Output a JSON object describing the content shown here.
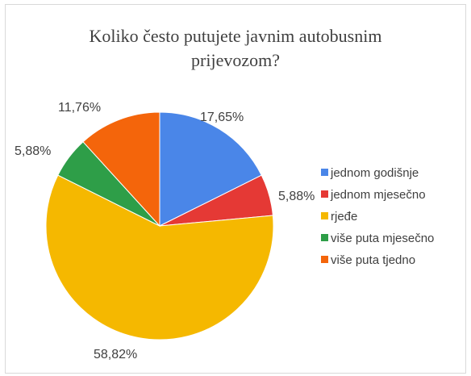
{
  "chart_data": {
    "type": "pie",
    "title_lines": [
      "Koliko često putujete javnim autobusnim",
      "prijevozom?"
    ],
    "slices": [
      {
        "label": "jednom godišnje",
        "value": 17.65,
        "display": "17,65%",
        "color": "#4a86e8"
      },
      {
        "label": "jednom mjesečno",
        "value": 5.88,
        "display": "5,88%",
        "color": "#e53935"
      },
      {
        "label": "rjeđe",
        "value": 58.82,
        "display": "58,82%",
        "color": "#f5b800"
      },
      {
        "label": "više puta mjesečno",
        "value": 5.88,
        "display": "5,88%",
        "color": "#2e9e48"
      },
      {
        "label": "više puta tjedno",
        "value": 11.76,
        "display": "11,76%",
        "color": "#f4650b"
      }
    ],
    "legend_position": "right"
  }
}
